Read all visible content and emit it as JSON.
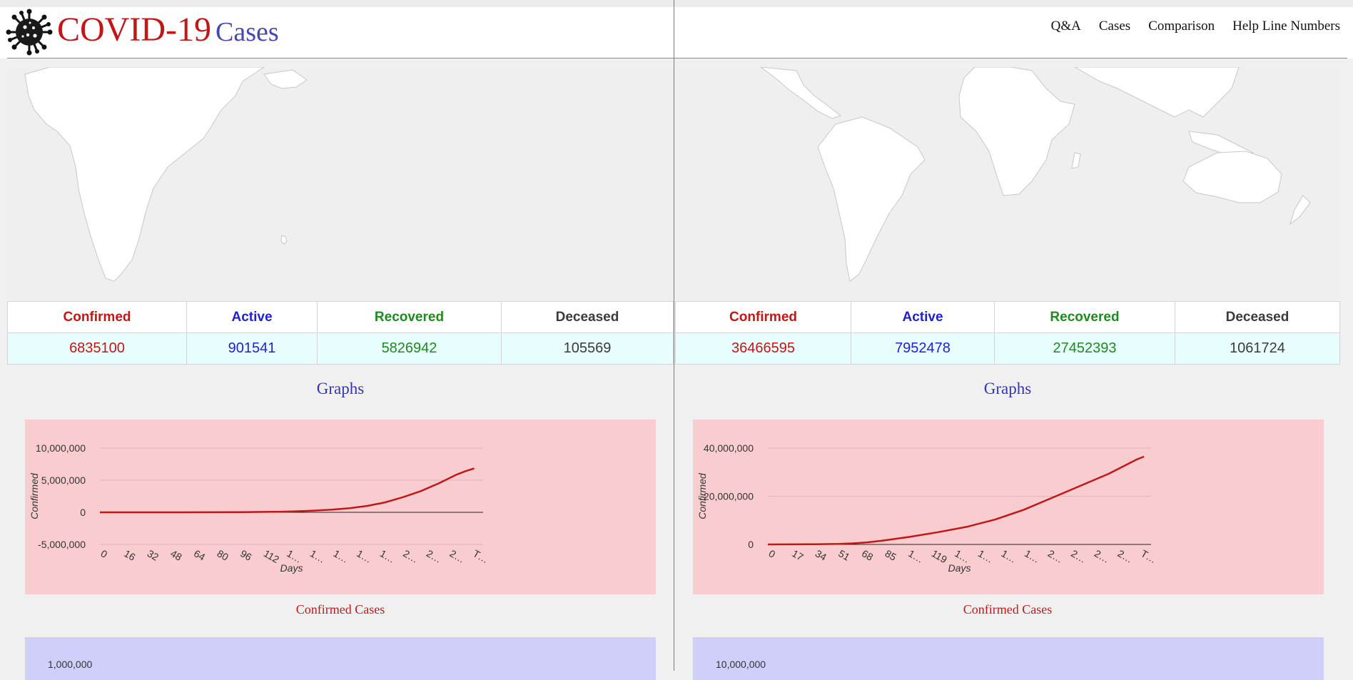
{
  "brand": {
    "title": "COVID-19",
    "subtitle": "Cases"
  },
  "nav": [
    "Q&A",
    "Cases",
    "Comparison",
    "Help Line Numbers"
  ],
  "colors": {
    "confirmed": "#c11717",
    "active": "#2222cc",
    "recovered": "#1f8a1f",
    "deceased": "#3b3b3b",
    "chart_bg": "#f9cdcf",
    "chart_line": "#c11717",
    "active_chart_bg": "#cfcff9"
  },
  "panels": [
    {
      "stats_headers": [
        "Confirmed",
        "Active",
        "Recovered",
        "Deceased"
      ],
      "stats_values": [
        "6835100",
        "901541",
        "5826942",
        "105569"
      ],
      "graphs_title": "Graphs",
      "chart_caption": "Confirmed Cases",
      "second_chart_top_tick": "1,000,000"
    },
    {
      "stats_headers": [
        "Confirmed",
        "Active",
        "Recovered",
        "Deceased"
      ],
      "stats_values": [
        "36466595",
        "7952478",
        "27452393",
        "1061724"
      ],
      "graphs_title": "Graphs",
      "chart_caption": "Confirmed Cases",
      "second_chart_top_tick": "10,000,000"
    }
  ],
  "chart_data": [
    {
      "type": "line",
      "title": "Confirmed Cases",
      "xlabel": "Days",
      "ylabel": "Confirmed",
      "ylim": [
        -5000000,
        10000000
      ],
      "yticks": [
        -5000000,
        0,
        5000000,
        10000000
      ],
      "ytick_labels": [
        "-5,000,000",
        "0",
        "5,000,000",
        "10,000,000"
      ],
      "xlim": [
        0,
        215
      ],
      "xtick_labels": [
        "0",
        "16",
        "32",
        "48",
        "64",
        "80",
        "96",
        "112",
        "1…",
        "1…",
        "1…",
        "1…",
        "1…",
        "2…",
        "2…",
        "2…",
        "T…"
      ],
      "x": [
        0,
        20,
        40,
        60,
        80,
        100,
        110,
        120,
        130,
        140,
        150,
        160,
        170,
        180,
        190,
        200,
        205,
        210
      ],
      "values": [
        0,
        0,
        3000,
        10000,
        30000,
        90000,
        160000,
        270000,
        420000,
        640000,
        1000000,
        1550000,
        2350000,
        3300000,
        4500000,
        5850000,
        6400000,
        6835100
      ]
    },
    {
      "type": "line",
      "title": "Confirmed Cases",
      "xlabel": "Days",
      "ylabel": "Confirmed",
      "ylim": [
        0,
        40000000
      ],
      "yticks": [
        0,
        20000000,
        40000000
      ],
      "ytick_labels": [
        "0",
        "20,000,000",
        "40,000,000"
      ],
      "xlim": [
        0,
        270
      ],
      "xtick_labels": [
        "0",
        "17",
        "34",
        "51",
        "68",
        "85",
        "1…",
        "119",
        "1…",
        "1…",
        "1…",
        "1…",
        "2…",
        "2…",
        "2…",
        "2…",
        "T…"
      ],
      "x": [
        0,
        30,
        50,
        60,
        70,
        80,
        90,
        100,
        120,
        140,
        160,
        180,
        200,
        220,
        240,
        250,
        260,
        265
      ],
      "values": [
        0,
        50000,
        200000,
        450000,
        850000,
        1500000,
        2350000,
        3150000,
        5100000,
        7300000,
        10300000,
        14300000,
        19300000,
        24300000,
        29300000,
        32300000,
        35300000,
        36466595
      ]
    }
  ]
}
